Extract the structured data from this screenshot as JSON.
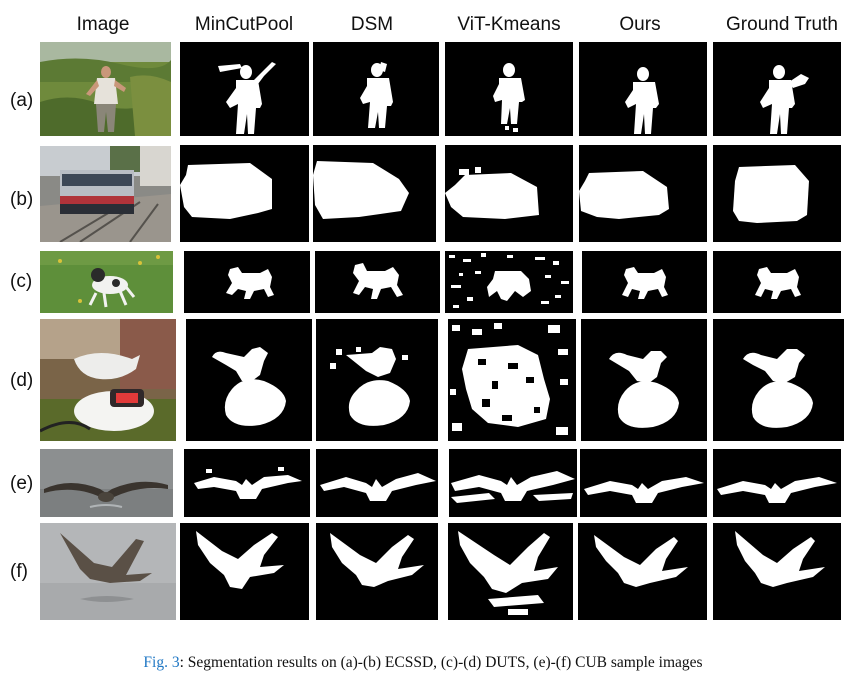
{
  "columns": [
    "Image",
    "MinCutPool",
    "DSM",
    "ViT-Kmeans",
    "Ours",
    "Ground Truth"
  ],
  "rows": [
    {
      "label": "(a)",
      "subject": "person"
    },
    {
      "label": "(b)",
      "subject": "train"
    },
    {
      "label": "(c)",
      "subject": "dog"
    },
    {
      "label": "(d)",
      "subject": "bird-on-device"
    },
    {
      "label": "(e)",
      "subject": "seabird-spread"
    },
    {
      "label": "(f)",
      "subject": "seabird-flying"
    }
  ],
  "caption": {
    "figure_ref": "Fig. 3",
    "text": ": Segmentation results on (a)-(b) ECSSD, (c)-(d) DUTS, (e)-(f) CUB sample images"
  },
  "colors": {
    "mask_background": "#000000",
    "mask_foreground": "#ffffff",
    "figure_ref": "#1f77c4"
  }
}
